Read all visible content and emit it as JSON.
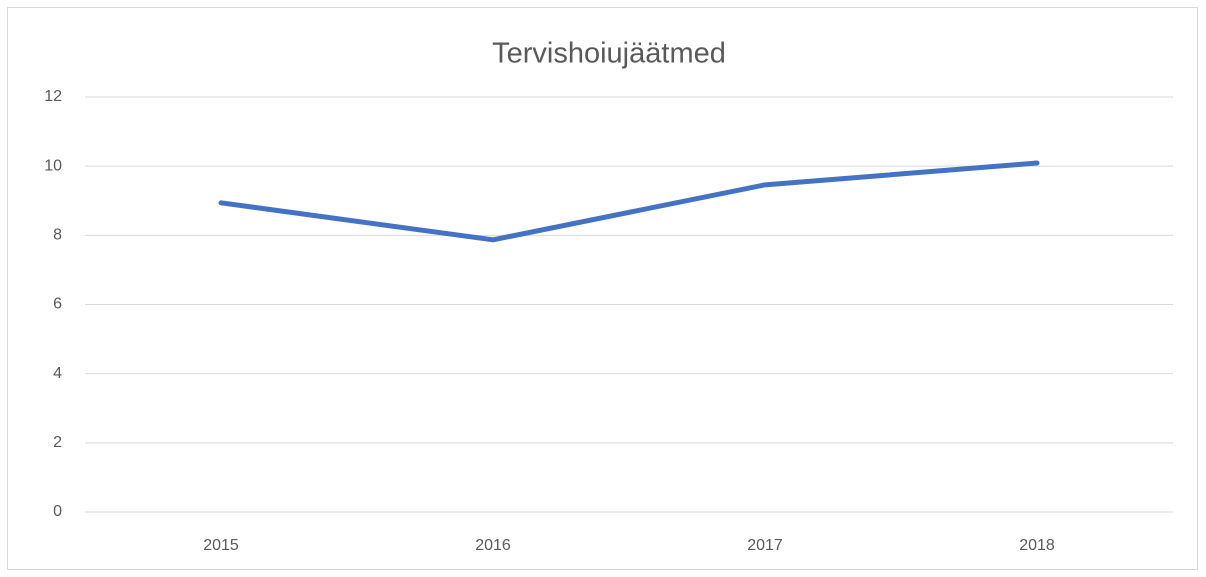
{
  "chart_data": {
    "type": "line",
    "title": "Tervishoiujäätmed",
    "categories": [
      "2015",
      "2016",
      "2017",
      "2018"
    ],
    "series": [
      {
        "name": "Tervishoiujäätmed",
        "color": "#4472c4",
        "values": [
          8.94,
          7.87,
          9.46,
          10.09
        ]
      }
    ],
    "ylim": [
      0,
      12
    ],
    "yticks": [
      0,
      2,
      4,
      6,
      8,
      10,
      12
    ],
    "grid": true
  }
}
